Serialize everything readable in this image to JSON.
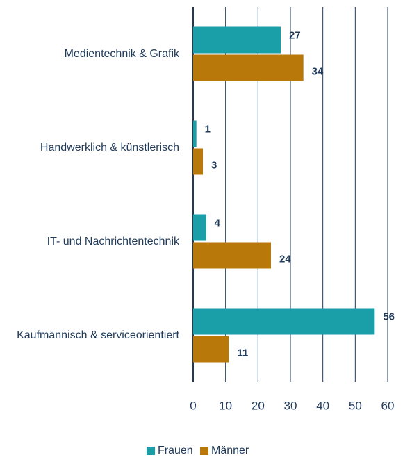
{
  "chart_data": {
    "type": "bar",
    "orientation": "horizontal",
    "categories": [
      "Medientechnik & Grafik",
      "Handwerklich & künstlerisch",
      "IT- und Nachrichtentechnik",
      "Kaufmännisch & serviceorientiert"
    ],
    "series": [
      {
        "name": "Frauen",
        "color": "#1a9ea8",
        "values": [
          27,
          1,
          4,
          56
        ]
      },
      {
        "name": "Männer",
        "color": "#b8780a",
        "values": [
          34,
          3,
          24,
          11
        ]
      }
    ],
    "xlim": [
      0,
      60
    ],
    "xticks": [
      0,
      10,
      20,
      30,
      40,
      50,
      60
    ],
    "grid": true
  }
}
